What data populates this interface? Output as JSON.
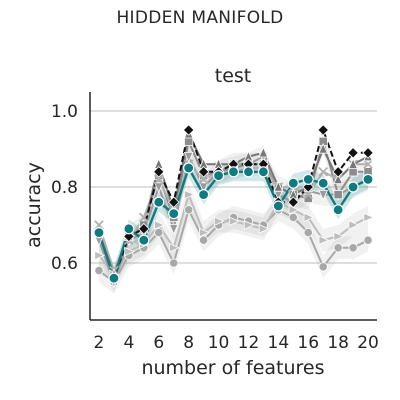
{
  "figure": {
    "suptitle": "HIDDEN MANIFOLD"
  },
  "chart_data": {
    "type": "line",
    "title": "test",
    "xlabel": "number of features",
    "ylabel": "accuracy",
    "xlim": [
      1.4,
      20.6
    ],
    "ylim": [
      0.45,
      1.05
    ],
    "xticks": [
      2,
      4,
      6,
      8,
      10,
      12,
      14,
      16,
      18,
      20
    ],
    "yticks": [
      0.6,
      0.8,
      1.0
    ],
    "ytick_labels": [
      "0.6",
      "0.8",
      "1.0"
    ],
    "grid": "horizontal",
    "x": [
      2,
      3,
      4,
      5,
      6,
      7,
      8,
      9,
      10,
      11,
      12,
      13,
      14,
      15,
      16,
      17,
      18,
      19,
      20
    ],
    "series": [
      {
        "color": "#a8a8a8",
        "marker": "circle",
        "dashed": false,
        "band": true,
        "values": [
          0.58,
          0.55,
          0.62,
          0.64,
          0.68,
          0.6,
          0.74,
          0.66,
          0.7,
          0.72,
          0.71,
          0.7,
          0.74,
          0.72,
          0.68,
          0.59,
          0.64,
          0.64,
          0.66
        ]
      },
      {
        "color": "#bdbdbd",
        "marker": "triangle-right",
        "dashed": false,
        "band": true,
        "values": [
          0.62,
          0.57,
          0.63,
          0.65,
          0.7,
          0.64,
          0.78,
          0.68,
          0.71,
          0.71,
          0.7,
          0.69,
          0.76,
          0.74,
          0.72,
          0.66,
          0.67,
          0.7,
          0.72
        ]
      },
      {
        "color": "#9a9a9a",
        "marker": "triangle-down",
        "dashed": false,
        "band": true,
        "values": [
          0.66,
          0.55,
          0.66,
          0.68,
          0.8,
          0.69,
          0.88,
          0.8,
          0.84,
          0.86,
          0.86,
          0.88,
          0.78,
          0.76,
          0.79,
          0.78,
          0.78,
          0.8,
          0.82
        ]
      },
      {
        "color": "#8c8c8c",
        "marker": "square",
        "dashed": false,
        "band": true,
        "values": [
          0.68,
          0.56,
          0.67,
          0.7,
          0.83,
          0.72,
          0.92,
          0.83,
          0.84,
          0.85,
          0.86,
          0.86,
          0.8,
          0.78,
          0.77,
          0.92,
          0.78,
          0.84,
          0.84
        ]
      },
      {
        "color": "#b0b0b0",
        "marker": "x",
        "dashed": false,
        "band": false,
        "values": [
          0.7,
          0.58,
          0.66,
          0.72,
          0.82,
          0.74,
          0.86,
          0.82,
          0.84,
          0.84,
          0.85,
          0.85,
          0.8,
          0.8,
          0.78,
          0.84,
          0.82,
          0.86,
          0.86
        ]
      },
      {
        "color": "#777777",
        "marker": "triangle-up",
        "dashed": false,
        "band": false,
        "values": [
          0.68,
          0.57,
          0.67,
          0.69,
          0.86,
          0.74,
          0.94,
          0.86,
          0.86,
          0.86,
          0.88,
          0.89,
          0.8,
          0.78,
          0.8,
          0.9,
          0.82,
          0.86,
          0.88
        ]
      },
      {
        "color": "#111111",
        "marker": "diamond",
        "dashed": true,
        "band": false,
        "values": [
          0.68,
          0.56,
          0.67,
          0.69,
          0.84,
          0.76,
          0.95,
          0.84,
          0.84,
          0.86,
          0.86,
          0.86,
          0.76,
          0.76,
          0.8,
          0.95,
          0.84,
          0.89,
          0.89
        ]
      },
      {
        "color": "#0e7b80",
        "marker": "circle",
        "dashed": false,
        "band": true,
        "highlight": true,
        "values": [
          0.68,
          0.56,
          0.69,
          0.66,
          0.76,
          0.73,
          0.85,
          0.78,
          0.83,
          0.84,
          0.84,
          0.84,
          0.75,
          0.81,
          0.82,
          0.81,
          0.74,
          0.8,
          0.82
        ]
      }
    ]
  }
}
